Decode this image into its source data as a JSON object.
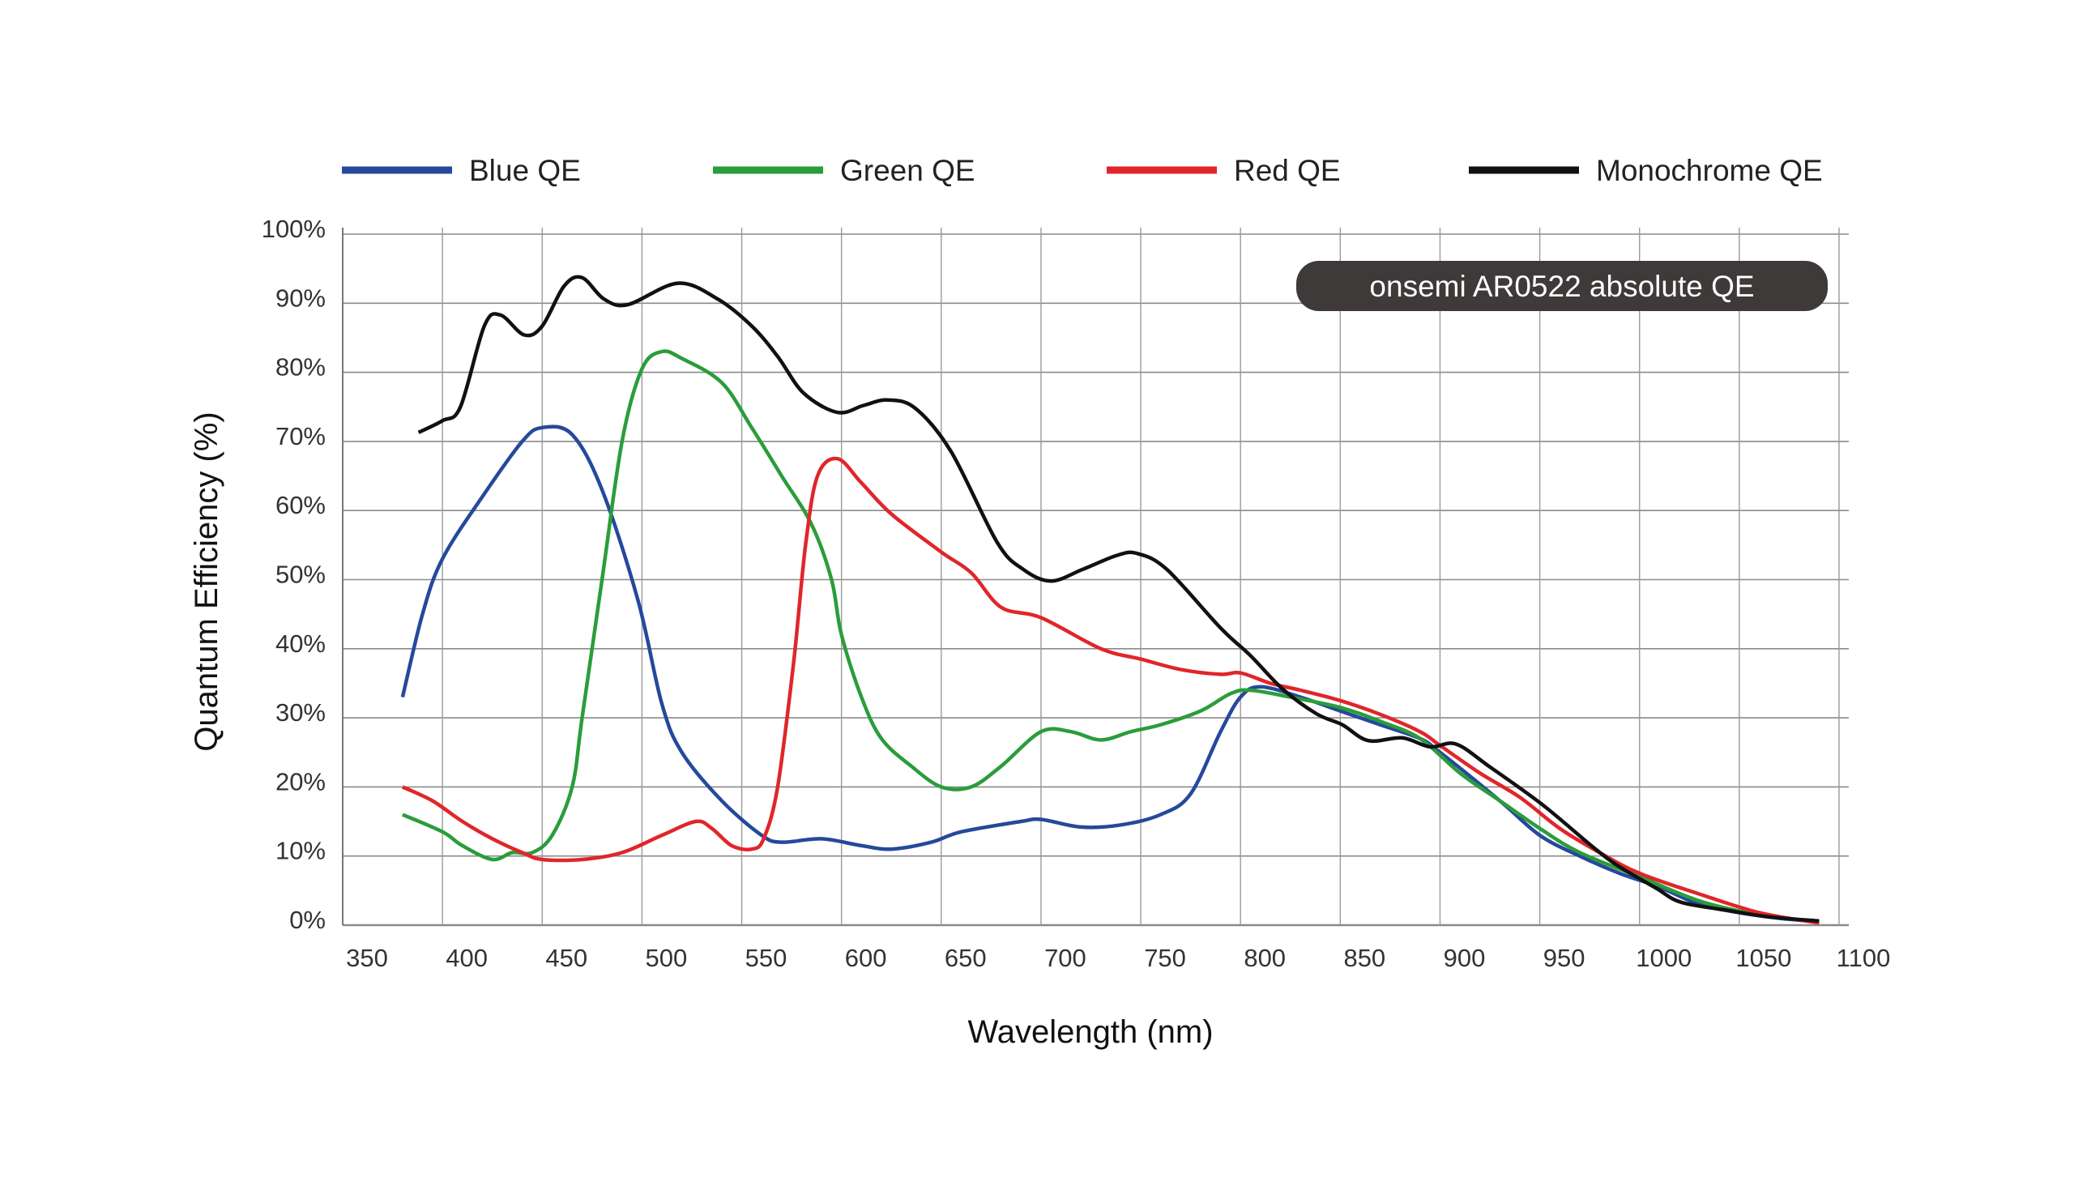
{
  "chart_data": {
    "type": "line",
    "title": "",
    "annotation": "onsemi AR0522 absolute QE",
    "xlabel": "Wavelength (nm)",
    "ylabel": "Quantum Efficiency (%)",
    "xlim": [
      350,
      1100
    ],
    "ylim": [
      0,
      100
    ],
    "xticks": [
      "350",
      "400",
      "450",
      "500",
      "550",
      "600",
      "650",
      "700",
      "750",
      "800",
      "850",
      "900",
      "950",
      "1000",
      "1050",
      "1100"
    ],
    "yticks": [
      "0%",
      "10%",
      "20%",
      "30%",
      "40%",
      "50%",
      "60%",
      "70%",
      "80%",
      "90%",
      "100%"
    ],
    "grid": true,
    "legend_position": "top",
    "annotation_bg": "#3d3a39",
    "series": [
      {
        "name": "Blue QE",
        "color": "#25499b",
        "points": [
          [
            380,
            33
          ],
          [
            390,
            45
          ],
          [
            400,
            53
          ],
          [
            420,
            62
          ],
          [
            440,
            70
          ],
          [
            450,
            72
          ],
          [
            465,
            71
          ],
          [
            480,
            63
          ],
          [
            498,
            47
          ],
          [
            510,
            32
          ],
          [
            520,
            25
          ],
          [
            540,
            18
          ],
          [
            560,
            13
          ],
          [
            570,
            12
          ],
          [
            590,
            12.5
          ],
          [
            610,
            11.5
          ],
          [
            625,
            11
          ],
          [
            645,
            12
          ],
          [
            660,
            13.5
          ],
          [
            690,
            15
          ],
          [
            700,
            15.3
          ],
          [
            720,
            14.2
          ],
          [
            740,
            14.5
          ],
          [
            760,
            16
          ],
          [
            775,
            19
          ],
          [
            790,
            28
          ],
          [
            800,
            33
          ],
          [
            810,
            34.5
          ],
          [
            830,
            33
          ],
          [
            850,
            31
          ],
          [
            870,
            29
          ],
          [
            890,
            27
          ],
          [
            900,
            25
          ],
          [
            930,
            18
          ],
          [
            950,
            13
          ],
          [
            970,
            10
          ],
          [
            990,
            7.5
          ],
          [
            1010,
            5.5
          ],
          [
            1030,
            3
          ],
          [
            1050,
            1.8
          ],
          [
            1070,
            1
          ],
          [
            1090,
            0.5
          ]
        ]
      },
      {
        "name": "Green QE",
        "color": "#2a9d3a",
        "points": [
          [
            380,
            16
          ],
          [
            400,
            13.5
          ],
          [
            410,
            11.5
          ],
          [
            425,
            9.5
          ],
          [
            435,
            10.5
          ],
          [
            445,
            10.5
          ],
          [
            455,
            13
          ],
          [
            465,
            20
          ],
          [
            470,
            30
          ],
          [
            480,
            50
          ],
          [
            490,
            70
          ],
          [
            500,
            80.5
          ],
          [
            510,
            83
          ],
          [
            520,
            82
          ],
          [
            540,
            78.5
          ],
          [
            555,
            72
          ],
          [
            570,
            65
          ],
          [
            585,
            58
          ],
          [
            595,
            50
          ],
          [
            600,
            42
          ],
          [
            610,
            33
          ],
          [
            620,
            27
          ],
          [
            635,
            23
          ],
          [
            650,
            20
          ],
          [
            665,
            20
          ],
          [
            680,
            23
          ],
          [
            700,
            28
          ],
          [
            715,
            28
          ],
          [
            730,
            26.8
          ],
          [
            745,
            28
          ],
          [
            760,
            29
          ],
          [
            780,
            31
          ],
          [
            795,
            33.5
          ],
          [
            805,
            34
          ],
          [
            825,
            33
          ],
          [
            850,
            31.5
          ],
          [
            870,
            29.5
          ],
          [
            890,
            27
          ],
          [
            910,
            22
          ],
          [
            930,
            18
          ],
          [
            950,
            14
          ],
          [
            970,
            10.5
          ],
          [
            1000,
            7
          ],
          [
            1030,
            3.5
          ],
          [
            1060,
            1.5
          ],
          [
            1090,
            0.5
          ]
        ]
      },
      {
        "name": "Red QE",
        "color": "#e0262a",
        "points": [
          [
            380,
            20
          ],
          [
            395,
            18
          ],
          [
            410,
            15
          ],
          [
            425,
            12.5
          ],
          [
            440,
            10.5
          ],
          [
            450,
            9.5
          ],
          [
            470,
            9.5
          ],
          [
            490,
            10.5
          ],
          [
            510,
            13
          ],
          [
            527,
            15
          ],
          [
            535,
            14
          ],
          [
            545,
            11.5
          ],
          [
            555,
            11
          ],
          [
            561,
            12.5
          ],
          [
            568,
            20
          ],
          [
            576,
            38
          ],
          [
            582,
            55
          ],
          [
            588,
            65
          ],
          [
            598,
            67.5
          ],
          [
            610,
            64
          ],
          [
            625,
            59.5
          ],
          [
            650,
            54
          ],
          [
            665,
            51
          ],
          [
            680,
            46
          ],
          [
            700,
            44.5
          ],
          [
            730,
            40
          ],
          [
            750,
            38.5
          ],
          [
            770,
            37
          ],
          [
            790,
            36.3
          ],
          [
            800,
            36.5
          ],
          [
            815,
            35
          ],
          [
            830,
            34
          ],
          [
            850,
            32.5
          ],
          [
            870,
            30.5
          ],
          [
            890,
            28
          ],
          [
            900,
            26
          ],
          [
            920,
            22
          ],
          [
            940,
            18.5
          ],
          [
            960,
            14
          ],
          [
            980,
            10.5
          ],
          [
            1000,
            7.5
          ],
          [
            1030,
            4.5
          ],
          [
            1060,
            1.8
          ],
          [
            1090,
            0.3
          ]
        ]
      },
      {
        "name": "Monochrome QE",
        "color": "#111111",
        "points": [
          [
            388,
            71.3
          ],
          [
            400,
            73
          ],
          [
            409,
            75
          ],
          [
            421,
            86.7
          ],
          [
            429,
            88.3
          ],
          [
            441,
            85.4
          ],
          [
            450,
            86.7
          ],
          [
            461,
            92.5
          ],
          [
            470,
            93.7
          ],
          [
            481,
            90.6
          ],
          [
            493,
            89.8
          ],
          [
            518,
            92.9
          ],
          [
            538,
            90.6
          ],
          [
            555,
            86.7
          ],
          [
            568,
            82.3
          ],
          [
            581,
            77
          ],
          [
            598,
            74.2
          ],
          [
            611,
            75.2
          ],
          [
            623,
            76
          ],
          [
            637,
            74.8
          ],
          [
            655,
            68.5
          ],
          [
            678,
            55.4
          ],
          [
            691,
            51.5
          ],
          [
            705,
            49.8
          ],
          [
            721,
            51.5
          ],
          [
            738,
            53.5
          ],
          [
            748,
            53.8
          ],
          [
            763,
            51.5
          ],
          [
            790,
            43
          ],
          [
            805,
            39
          ],
          [
            821,
            34.2
          ],
          [
            838,
            30.6
          ],
          [
            851,
            29
          ],
          [
            864,
            26.7
          ],
          [
            881,
            27.1
          ],
          [
            895,
            25.8
          ],
          [
            908,
            26.2
          ],
          [
            925,
            22.9
          ],
          [
            951,
            17.5
          ],
          [
            975,
            11.7
          ],
          [
            988,
            8.8
          ],
          [
            1008,
            5.4
          ],
          [
            1021,
            3.3
          ],
          [
            1045,
            2.1
          ],
          [
            1065,
            1.2
          ],
          [
            1090,
            0.6
          ]
        ]
      }
    ]
  }
}
